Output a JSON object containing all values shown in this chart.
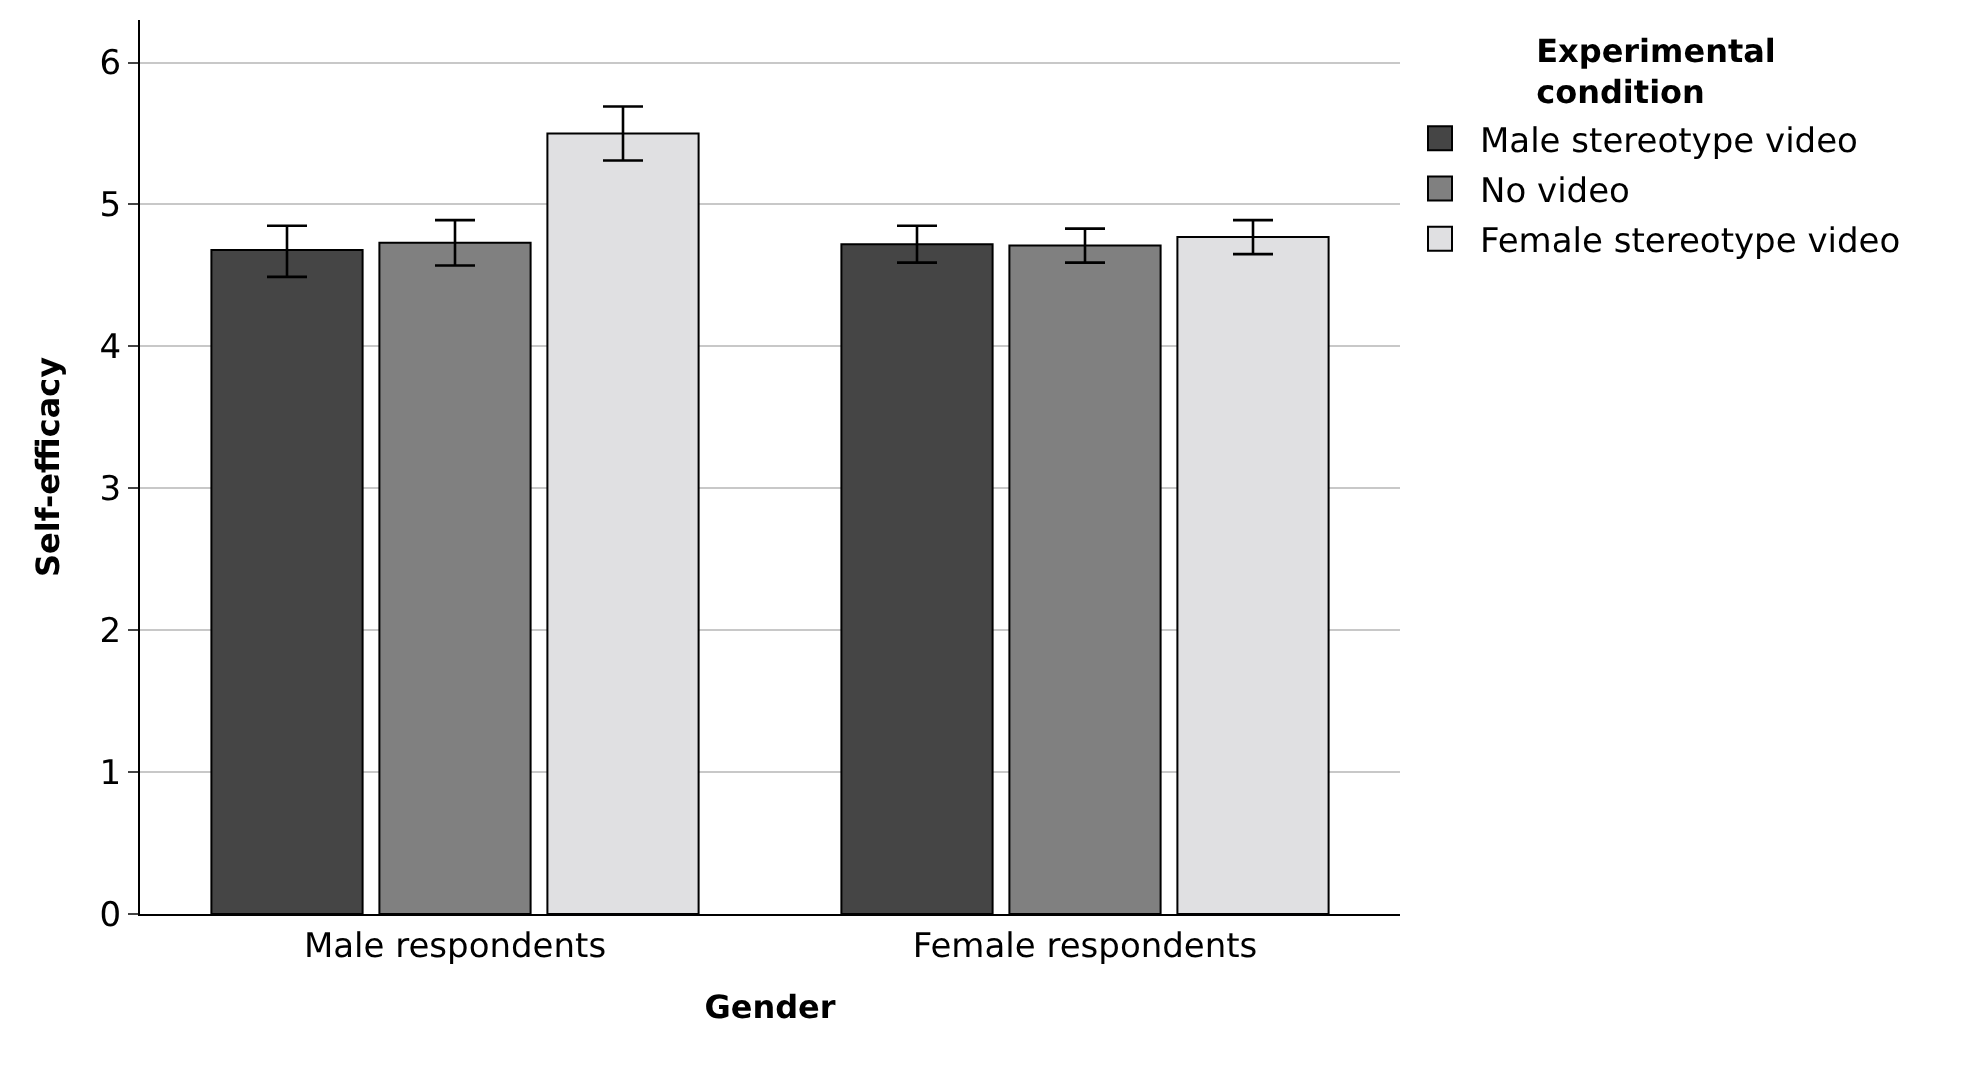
{
  "chart_data": {
    "type": "bar",
    "xlabel": "Gender",
    "ylabel": "Self-efficacy",
    "legend_title": "Experimental condition",
    "categories": [
      "Male respondents",
      "Female respondents"
    ],
    "series": [
      {
        "name": "Male stereotype video",
        "color": "#454545",
        "values": [
          4.68,
          4.72
        ],
        "errors": [
          [
            4.49,
            4.85
          ],
          [
            4.59,
            4.85
          ]
        ]
      },
      {
        "name": "No video",
        "color": "#808080",
        "values": [
          4.73,
          4.71
        ],
        "errors": [
          [
            4.57,
            4.89
          ],
          [
            4.59,
            4.83
          ]
        ]
      },
      {
        "name": "Female stereotype video",
        "color": "#e0e0e2",
        "values": [
          5.5,
          4.77
        ],
        "errors": [
          [
            5.31,
            5.69
          ],
          [
            4.65,
            4.89
          ]
        ]
      }
    ],
    "ylim": [
      0,
      6.3
    ],
    "yticks": [
      0,
      1,
      2,
      3,
      4,
      5,
      6
    ],
    "grid": "y",
    "legend": "top right"
  }
}
